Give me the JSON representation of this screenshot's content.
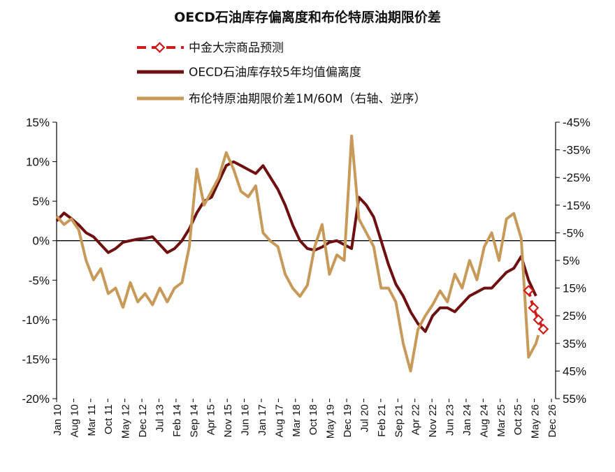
{
  "chart_data": {
    "type": "line",
    "title": "OECD石油库存偏离度和布伦特原油期限价差",
    "legend": [
      {
        "label": "中金大宗商品预测",
        "color": "#d11a1a",
        "style": "dashed-diamond"
      },
      {
        "label": "OECD石油库存较5年均值偏离度",
        "color": "#6e0f10",
        "style": "solid"
      },
      {
        "label": "布伦特原油期限价差1M/60M（右轴、逆序）",
        "color": "#c89a5a",
        "style": "solid"
      }
    ],
    "legend_position": "top-center",
    "x_tick_labels": [
      "Jan 10",
      "Aug 10",
      "Mar 11",
      "Oct 11",
      "May 12",
      "Dec 12",
      "Jul 13",
      "Feb 14",
      "Sep 14",
      "Apr 15",
      "Nov 15",
      "Jun 16",
      "Jan 17",
      "Aug 17",
      "Mar 18",
      "Oct 18",
      "May 19",
      "Dec 19",
      "Jul 20",
      "Feb 21",
      "Sep 21",
      "Apr 22",
      "Nov 22",
      "Jun 23",
      "Jan 24",
      "Aug 24",
      "Mar 25",
      "Oct 25",
      "May 26",
      "Dec 26"
    ],
    "x_range": [
      "2010-01",
      "2026-12"
    ],
    "y_left": {
      "range": [
        -20,
        15
      ],
      "unit": "%",
      "ticks": [
        "15%",
        "10%",
        "5%",
        "0%",
        "-5%",
        "-10%",
        "-15%",
        "-20%"
      ]
    },
    "y_right": {
      "range": [
        -45,
        55
      ],
      "inverted": true,
      "unit": "%",
      "ticks": [
        "-45%",
        "-35%",
        "-25%",
        "-15%",
        "-5%",
        "5%",
        "15%",
        "25%",
        "35%",
        "45%",
        "55%"
      ]
    },
    "series": [
      {
        "name": "OECD石油库存较5年均值偏离度",
        "axis": "left",
        "x": [
          "2010-01",
          "2010-04",
          "2010-07",
          "2010-10",
          "2011-01",
          "2011-04",
          "2011-07",
          "2011-10",
          "2012-01",
          "2012-04",
          "2012-07",
          "2012-10",
          "2013-01",
          "2013-04",
          "2013-07",
          "2013-10",
          "2014-01",
          "2014-04",
          "2014-07",
          "2014-10",
          "2015-01",
          "2015-04",
          "2015-07",
          "2015-10",
          "2016-01",
          "2016-04",
          "2016-07",
          "2016-10",
          "2017-01",
          "2017-04",
          "2017-07",
          "2017-10",
          "2018-01",
          "2018-04",
          "2018-07",
          "2018-10",
          "2019-01",
          "2019-04",
          "2019-07",
          "2019-10",
          "2020-01",
          "2020-04",
          "2020-07",
          "2020-10",
          "2021-01",
          "2021-04",
          "2021-07",
          "2021-10",
          "2022-01",
          "2022-04",
          "2022-07",
          "2022-10",
          "2023-01",
          "2023-04",
          "2023-07",
          "2023-10",
          "2024-01",
          "2024-04",
          "2024-07",
          "2024-10",
          "2025-01",
          "2025-04",
          "2025-07",
          "2025-10",
          "2026-01",
          "2026-04"
        ],
        "y": [
          2.5,
          3.5,
          2.8,
          2.0,
          1.0,
          0.5,
          -0.5,
          -1.5,
          -1.0,
          -0.2,
          0.0,
          0.2,
          0.3,
          0.5,
          -0.5,
          -1.5,
          -1.0,
          0.0,
          1.5,
          3.5,
          5.0,
          5.5,
          7.5,
          9.5,
          10.0,
          9.5,
          9.0,
          8.5,
          9.5,
          8.0,
          6.5,
          4.5,
          2.0,
          0.0,
          -1.0,
          -1.2,
          -0.8,
          -0.2,
          0.0,
          -0.5,
          -1.0,
          5.5,
          4.5,
          3.0,
          0.0,
          -3.0,
          -5.5,
          -7.0,
          -9.0,
          -10.5,
          -11.5,
          -9.5,
          -8.5,
          -8.5,
          -9.0,
          -8.0,
          -7.0,
          -6.5,
          -6.0,
          -6.0,
          -5.0,
          -4.0,
          -3.5,
          -2.0,
          -5.0,
          -7.0
        ]
      },
      {
        "name": "布伦特原油期限价差1M/60M（右轴、逆序）",
        "axis": "right",
        "x": [
          "2010-01",
          "2010-04",
          "2010-07",
          "2010-10",
          "2011-01",
          "2011-04",
          "2011-07",
          "2011-10",
          "2012-01",
          "2012-04",
          "2012-07",
          "2012-10",
          "2013-01",
          "2013-04",
          "2013-07",
          "2013-10",
          "2014-01",
          "2014-04",
          "2014-07",
          "2014-10",
          "2015-01",
          "2015-04",
          "2015-07",
          "2015-10",
          "2016-01",
          "2016-04",
          "2016-07",
          "2016-10",
          "2017-01",
          "2017-04",
          "2017-07",
          "2017-10",
          "2018-01",
          "2018-04",
          "2018-07",
          "2018-10",
          "2019-01",
          "2019-04",
          "2019-07",
          "2019-10",
          "2020-01",
          "2020-04",
          "2020-07",
          "2020-10",
          "2021-01",
          "2021-04",
          "2021-07",
          "2021-10",
          "2022-01",
          "2022-04",
          "2022-07",
          "2022-10",
          "2023-01",
          "2023-04",
          "2023-07",
          "2023-10",
          "2024-01",
          "2024-04",
          "2024-07",
          "2024-10",
          "2025-01",
          "2025-04",
          "2025-07",
          "2025-10",
          "2026-01",
          "2026-04",
          "2026-05"
        ],
        "y": [
          -11,
          -8,
          -10,
          -6,
          5,
          12,
          8,
          17,
          15,
          22,
          13,
          20,
          17,
          21,
          15,
          20,
          15,
          13,
          0,
          -28,
          -15,
          -20,
          -25,
          -34,
          -28,
          -20,
          -18,
          -22,
          -5,
          -2,
          0,
          10,
          15,
          18,
          14,
          0,
          -8,
          10,
          3,
          5,
          -40,
          -10,
          -5,
          0,
          15,
          15,
          20,
          35,
          45,
          30,
          25,
          21,
          16,
          20,
          10,
          15,
          5,
          12,
          0,
          -5,
          5,
          -10,
          -12,
          -3,
          40,
          35,
          32
        ]
      },
      {
        "name": "中金大宗商品预测",
        "axis": "left",
        "x": [
          "2026-01",
          "2026-03",
          "2026-05",
          "2026-07"
        ],
        "y": [
          -6.3,
          -8.5,
          -10.0,
          -11.2
        ]
      }
    ]
  }
}
